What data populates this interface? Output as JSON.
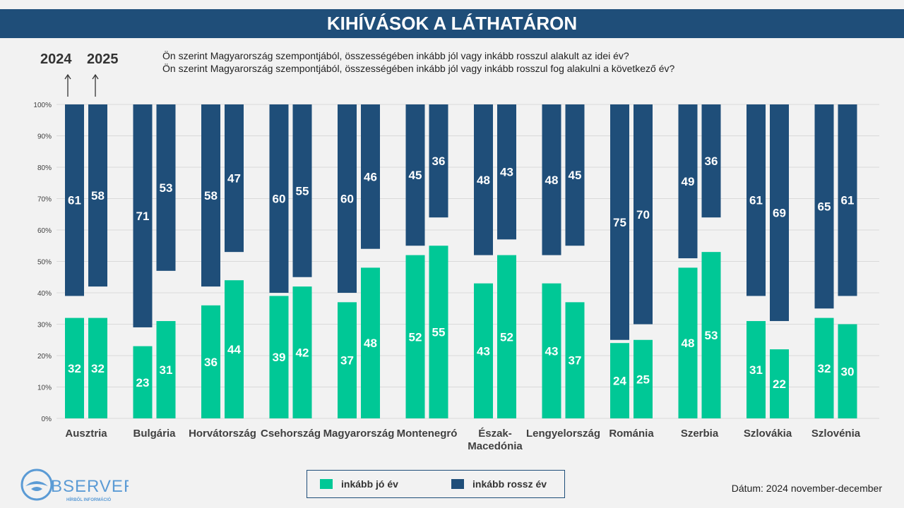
{
  "title": "KIHÍVÁSOK A LÁTHATÁRON",
  "year_labels": [
    "2024",
    "2025"
  ],
  "questions": [
    "Ön szerint Magyarország szempontjából, összességében inkább jól vagy inkább rosszul alakult az idei év?",
    "Ön szerint Magyarország szempontjából, összességében inkább jól vagy inkább rosszul fog alakulni a következő év?"
  ],
  "legend": {
    "good_label": "inkább jó év",
    "bad_label": "inkább rossz év"
  },
  "date_text": "Dátum: 2024 november-december",
  "logo": {
    "name": "OBSERVER",
    "tagline": "HÍRBŐL INFORMÁCIÓ"
  },
  "colors": {
    "good": "#00c896",
    "bad": "#1f4e79",
    "title_bg": "#1f4e79",
    "grid": "#d9d9d9"
  },
  "chart_data": {
    "type": "bar",
    "stacking": "floating (good from 0%, bad down from 100%)",
    "ylim": [
      0,
      100
    ],
    "y_ticks": [
      "0%",
      "10%",
      "20%",
      "30%",
      "40%",
      "50%",
      "60%",
      "70%",
      "80%",
      "90%",
      "100%"
    ],
    "grid": true,
    "categories": [
      "Ausztria",
      "Bulgária",
      "Horvátország",
      "Csehország",
      "Magyarország",
      "Montenegró",
      "Észak-Macedónia",
      "Lengyelország",
      "Románia",
      "Szerbia",
      "Szlovákia",
      "Szlovénia"
    ],
    "category_lines": [
      [
        "Ausztria"
      ],
      [
        "Bulgária"
      ],
      [
        "Horvátország"
      ],
      [
        "Csehország"
      ],
      [
        "Magyarország"
      ],
      [
        "Montenegró"
      ],
      [
        "Észak-",
        "Macedónia"
      ],
      [
        "Lengyelország"
      ],
      [
        "Románia"
      ],
      [
        "Szerbia"
      ],
      [
        "Szlovákia"
      ],
      [
        "Szlovénia"
      ]
    ],
    "series": [
      {
        "name": "inkább jó év",
        "year": "2024",
        "values": [
          32,
          23,
          36,
          39,
          37,
          52,
          43,
          43,
          24,
          48,
          31,
          32
        ]
      },
      {
        "name": "inkább rossz év",
        "year": "2024",
        "values": [
          61,
          71,
          58,
          60,
          60,
          45,
          48,
          48,
          75,
          49,
          61,
          65
        ]
      },
      {
        "name": "inkább jó év",
        "year": "2025",
        "values": [
          32,
          31,
          44,
          42,
          48,
          55,
          52,
          37,
          25,
          53,
          22,
          30
        ]
      },
      {
        "name": "inkább rossz év",
        "year": "2025",
        "values": [
          58,
          53,
          47,
          55,
          46,
          36,
          43,
          45,
          70,
          36,
          69,
          61
        ]
      }
    ],
    "legend_position": "bottom-center"
  }
}
